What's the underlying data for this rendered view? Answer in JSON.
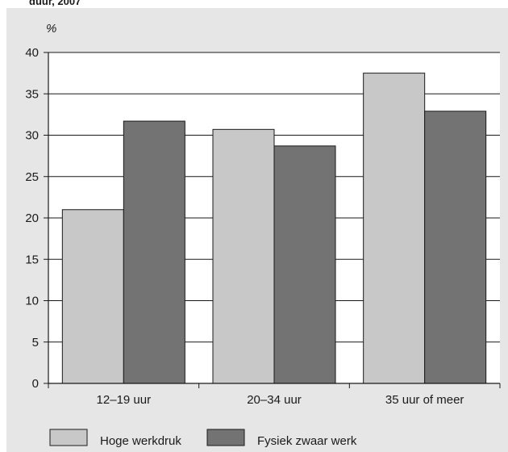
{
  "header_fragment": "duur, 2007",
  "chart_data": {
    "type": "bar",
    "ylabel": "%",
    "ylim": [
      0,
      40
    ],
    "yticks": [
      0,
      5,
      10,
      15,
      20,
      25,
      30,
      35,
      40
    ],
    "grid": true,
    "legend": "bottom",
    "categories": [
      "12–19 uur",
      "20–34 uur",
      "35 uur of meer"
    ],
    "series": [
      {
        "name": "Hoge werkdruk",
        "color": "#c8c8c8",
        "values": [
          21,
          30.7,
          37.5
        ]
      },
      {
        "name": "Fysiek zwaar werk",
        "color": "#737373",
        "values": [
          31.7,
          28.7,
          32.9
        ]
      }
    ]
  }
}
